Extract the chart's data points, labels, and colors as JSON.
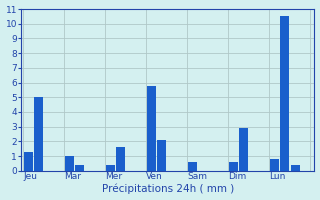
{
  "days": [
    "Jeu",
    "Mar",
    "Mer",
    "Ven",
    "Sam",
    "Dim",
    "Lun"
  ],
  "bar1": [
    1.3,
    1.0,
    0.4,
    5.8,
    0.6,
    0.6,
    0.8
  ],
  "bar2": [
    5.0,
    0.4,
    1.6,
    2.1,
    0.0,
    2.9,
    10.5
  ],
  "bar3": [
    0.0,
    0.0,
    0.0,
    0.0,
    0.0,
    0.0,
    0.4
  ],
  "bar_color": "#1a5fcc",
  "background_color": "#d4f0f0",
  "grid_color": "#b0c8c8",
  "xlabel": "Précipitations 24h ( mm )",
  "ylim": [
    0,
    11
  ],
  "yticks": [
    0,
    1,
    2,
    3,
    4,
    5,
    6,
    7,
    8,
    9,
    10,
    11
  ],
  "xlabel_color": "#2244aa",
  "tick_color": "#2244aa",
  "axis_color": "#2244aa",
  "sep_color": "#888899"
}
